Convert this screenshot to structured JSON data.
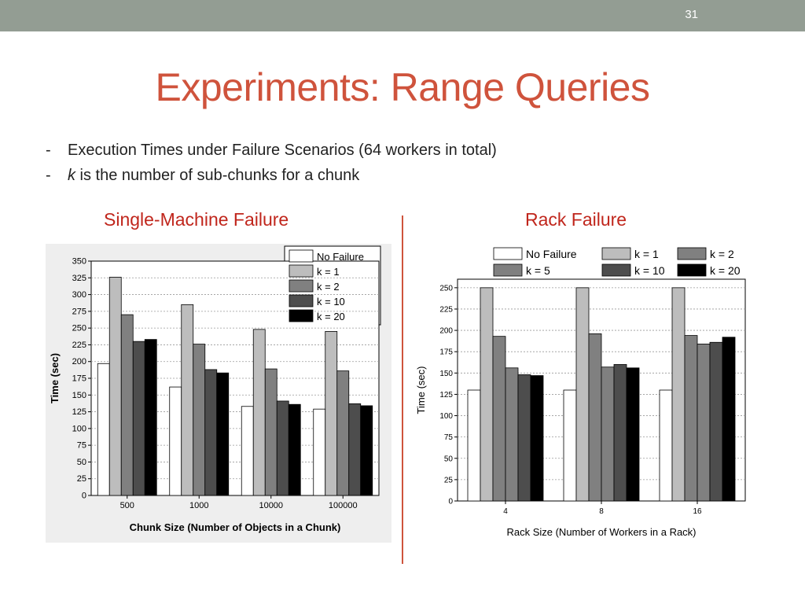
{
  "slide": {
    "number": "31",
    "title": "Experiments: Range Queries",
    "bullets": [
      {
        "dash": "-",
        "text": "Execution Times under Failure Scenarios (64 workers in total)"
      },
      {
        "dash": "-",
        "k": "k",
        "text": " is the number of sub-chunks for a chunk"
      }
    ],
    "left_title": "Single-Machine Failure",
    "right_title": "Rack Failure"
  },
  "colors": {
    "series": [
      "#ffffff",
      "#bdbdbd",
      "#808080",
      "#4d4d4d",
      "#383838",
      "#000000"
    ],
    "title": "#cf533c",
    "accent": "#c0261c"
  },
  "chart_data": [
    {
      "type": "bar",
      "title": "Single-Machine Failure",
      "xlabel": "Chunk Size (Number of Objects in a Chunk)",
      "ylabel": "Time (sec)",
      "categories": [
        "500",
        "1000",
        "10000",
        "100000"
      ],
      "ylim": [
        0,
        350
      ],
      "yticks": [
        "0",
        "25",
        "50",
        "75",
        "100",
        "125",
        "150",
        "175",
        "200",
        "225",
        "250",
        "275",
        "300",
        "325",
        "350"
      ],
      "grid": true,
      "legend": "top-right",
      "series": [
        {
          "name": "No Failure",
          "values": [
            197,
            162,
            133,
            129
          ]
        },
        {
          "name": "k = 1",
          "values": [
            326,
            285,
            248,
            245
          ]
        },
        {
          "name": "k = 2",
          "values": [
            270,
            226,
            189,
            186
          ]
        },
        {
          "name": "k = 10",
          "values": [
            230,
            188,
            141,
            137
          ]
        },
        {
          "name": "k = 20",
          "values": [
            233,
            183,
            136,
            134
          ]
        }
      ]
    },
    {
      "type": "bar",
      "title": "Rack Failure",
      "xlabel": "Rack Size (Number of Workers in a Rack)",
      "ylabel": "Time (sec)",
      "categories": [
        "4",
        "8",
        "16"
      ],
      "ylim": [
        0,
        260
      ],
      "yticks": [
        "0",
        "25",
        "50",
        "75",
        "100",
        "125",
        "150",
        "175",
        "200",
        "225",
        "250"
      ],
      "grid": true,
      "legend": "top",
      "series": [
        {
          "name": "No Failure",
          "values": [
            130,
            130,
            130
          ]
        },
        {
          "name": "k = 1",
          "values": [
            250,
            250,
            250
          ]
        },
        {
          "name": "k = 2",
          "values": [
            193,
            196,
            194
          ]
        },
        {
          "name": "k = 5",
          "values": [
            156,
            157,
            184
          ]
        },
        {
          "name": "k = 10",
          "values": [
            148,
            160,
            186
          ]
        },
        {
          "name": "k = 20",
          "values": [
            147,
            156,
            192
          ]
        }
      ]
    }
  ]
}
